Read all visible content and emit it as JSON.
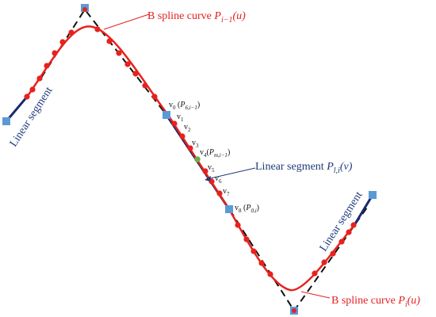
{
  "colors": {
    "spline": "#e8211d",
    "dashed_polygon": "#111111",
    "linear_segment": "#1b2a6b",
    "control_point": "#5b9bd5",
    "mid_point": "#70ad47",
    "curve_point": "#e8211d",
    "red_text": "#e32020",
    "blue_text": "#1f3a7a"
  },
  "labels": {
    "spline_top": {
      "prefix": "B spline curve ",
      "sym": "P",
      "sub": "i−1",
      "arg": "(u)"
    },
    "spline_bottom": {
      "prefix": "B spline curve ",
      "sym": "P",
      "sub": "i",
      "arg": "(u)"
    },
    "linear_mid": {
      "prefix": "Linear segment ",
      "sym": "P",
      "sub": "l,i",
      "arg": "(v)"
    },
    "linear_left": "Linear segment",
    "linear_right": "Linear segment"
  },
  "vertex_labels": [
    {
      "base": "v",
      "sub": "0",
      "extra_open": " (",
      "extra_sym": "P",
      "extra_sub": "6,i−1",
      "extra_close": ")"
    },
    {
      "base": "v",
      "sub": "1"
    },
    {
      "base": "v",
      "sub": "2"
    },
    {
      "base": "v",
      "sub": "3"
    },
    {
      "base": "v",
      "sub": "4",
      "extra_open": "(",
      "extra_sym": "P",
      "extra_sub": "m,i−1",
      "extra_close": ")"
    },
    {
      "base": "v",
      "sub": "5"
    },
    {
      "base": "v",
      "sub": "6"
    },
    {
      "base": "v",
      "sub": "7"
    },
    {
      "base": "v",
      "sub": "8",
      "extra_open": " (",
      "extra_sym": "P",
      "extra_sub": "0,i",
      "extra_close": ")"
    }
  ]
}
